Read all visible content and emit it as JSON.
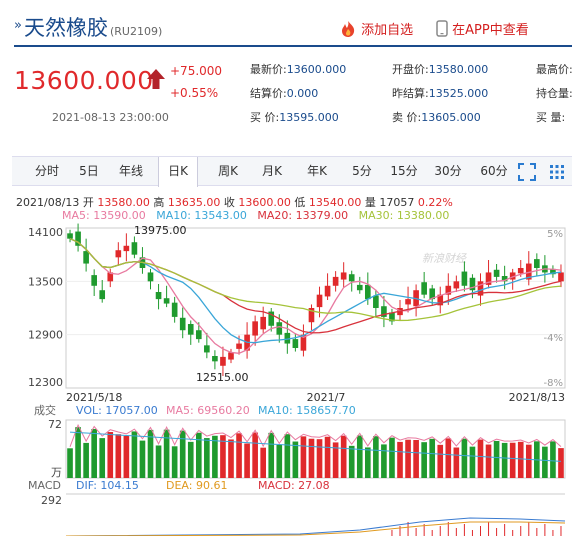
{
  "header": {
    "title": "天然橡胶",
    "code": "(RU2109)",
    "add_label": "添加自选",
    "app_label": "在APP中查看"
  },
  "quote": {
    "price": "13600.000",
    "change": "+75.000",
    "change_pct": "+0.55%",
    "datetime": "2021-08-13 23:00:00"
  },
  "fields": [
    {
      "label": "最新价:",
      "value": "13600.000"
    },
    {
      "label": "开盘价:",
      "value": "13580.000"
    },
    {
      "label": "最高价:",
      "value": ""
    },
    {
      "label": "结算价:",
      "value": "0.000"
    },
    {
      "label": "昨结算:",
      "value": "13525.000"
    },
    {
      "label": "持仓量:",
      "value": ""
    },
    {
      "label": "买  价:",
      "value": "13595.000"
    },
    {
      "label": "卖  价:",
      "value": "13605.000"
    },
    {
      "label": "买  量:",
      "value": ""
    }
  ],
  "tabs": [
    "分时",
    "5日",
    "年线",
    "日K",
    "周K",
    "月K",
    "年K",
    "5分",
    "15分",
    "30分",
    "60分"
  ],
  "active_tab": "日K",
  "kinfo": {
    "date": "2021/08/13",
    "open_l": "开",
    "open": "13580.00",
    "high_l": "高",
    "high": "13635.00",
    "close_l": "收",
    "close": "13600.00",
    "low_l": "低",
    "low": "13540.00",
    "vol_l": "量",
    "vol": "17057",
    "pct": "0.22%"
  },
  "ma": {
    "ma5": "MA5: 13590.00",
    "ma10": "MA10: 13543.00",
    "ma20": "MA20: 13379.00",
    "ma30": "MA30: 13380.00"
  },
  "price_axis": [
    "14100",
    "13500",
    "12900",
    "12300"
  ],
  "pct_axis": [
    "5%",
    "-4%",
    "-8%"
  ],
  "date_axis": [
    "2021/5/18",
    "2021/7",
    "2021/8/13"
  ],
  "annotations": {
    "max": "13975.00",
    "min": "12515.00"
  },
  "watermark": "新浪财经",
  "volume": {
    "title": "成交",
    "vol": "VOL: 17057.00",
    "ma5": "MA5: 69560.20",
    "ma10": "MA10: 158657.70",
    "top": "72",
    "unit": "万"
  },
  "macd": {
    "title": "MACD",
    "dif": "DIF: 104.15",
    "dea": "DEA: 90.61",
    "macd": "MACD: 27.08",
    "top": "292"
  },
  "colors": {
    "up": "#e0292b",
    "down": "#1f9a2e",
    "ma5": "#e87aa0",
    "ma10": "#3aa6d8",
    "ma20": "#d8323c",
    "ma30": "#a5c33a",
    "accent": "#1a4b8c"
  }
}
